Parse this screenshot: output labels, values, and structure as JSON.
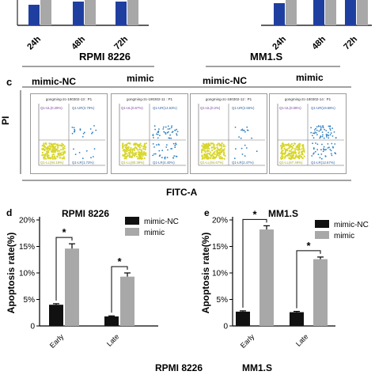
{
  "top_strip": {
    "left_ticks": [
      "24h",
      "48h",
      "72h"
    ],
    "right_ticks": [
      "24h",
      "48h",
      "72h"
    ]
  },
  "panel_c": {
    "letter": "c",
    "group_left": "RPMI 8226",
    "group_right": "MM1.S",
    "labels": [
      "mimic-NC",
      "mimic",
      "mimic-NC",
      "mimic"
    ],
    "y_axis": "PI",
    "x_axis": "FITC-A",
    "plots": [
      {
        "title": "gongming-2c-190302-13 : P1",
        "q_ul": "Q1-UL(0.29%)",
        "q_ur": "Q1-UR(3.79%)",
        "q_ll": "Q1-LL(94.19%)",
        "q_lr": "Q1-LR(1.73%)"
      },
      {
        "title": "gongming-2c-190302-11 : P1",
        "q_ul": "Q1-UL(0.67%)",
        "q_ur": "Q1-UR(14.53%)",
        "q_ll": "Q1-LL(80.39%)",
        "q_lr": "Q1-LR(4.40%)"
      },
      {
        "title": "gongming-2c-180302-12 : P1",
        "q_ul": "Q1-UL(0.2%)",
        "q_ur": "Q1-UR(2.66%)",
        "q_ll": "Q1-LL(94.67%)",
        "q_lr": "Q1-LR(2.47%)"
      },
      {
        "title": "gongming-2c-180302-14 : P1",
        "q_ul": "Q1-UL(0.08%)",
        "q_ur": "Q1-UR(19.68%)",
        "q_ll": "Q1-LL(67.49%)",
        "q_lr": "Q1-LR(12.67%)"
      }
    ]
  },
  "panel_d": {
    "letter": "d"
  },
  "panel_e": {
    "letter": "e"
  },
  "bottom_labels": {
    "left": "RPMI 8226",
    "right": "MM1.S"
  },
  "colors": {
    "mimic_nc": "#111111",
    "mimic": "#a8a8a8",
    "top_blue": "#1f3fa0",
    "top_gray": "#a8a8a8"
  },
  "chart_data": [
    {
      "type": "bar",
      "title": "RPMI 8226",
      "ylabel": "Apoptosis rate(%)",
      "xlabel": "",
      "categories": [
        "Early",
        "Late"
      ],
      "ylim": [
        0,
        20
      ],
      "yticks": [
        "0",
        "5%",
        "10%",
        "15%",
        "20%"
      ],
      "series": [
        {
          "name": "mimic-NC",
          "values": [
            4.0,
            1.8
          ],
          "errors": [
            0.2,
            0.1
          ]
        },
        {
          "name": "mimic",
          "values": [
            14.6,
            9.3
          ],
          "errors": [
            0.9,
            0.7
          ]
        }
      ],
      "significance": [
        "*",
        "*"
      ],
      "legend": "top-right"
    },
    {
      "type": "bar",
      "title": "MM1.S",
      "ylabel": "Apoptosis rate(%)",
      "xlabel": "",
      "categories": [
        "Early",
        "Late"
      ],
      "ylim": [
        0,
        20
      ],
      "yticks": [
        "0",
        "5%",
        "10%",
        "15%",
        "20%"
      ],
      "series": [
        {
          "name": "mimic-NC",
          "values": [
            2.7,
            2.6
          ],
          "errors": [
            0.15,
            0.15
          ]
        },
        {
          "name": "mimic",
          "values": [
            18.2,
            12.6
          ],
          "errors": [
            0.7,
            0.4
          ]
        }
      ],
      "significance": [
        "*",
        "*"
      ],
      "legend": "top-right"
    }
  ]
}
